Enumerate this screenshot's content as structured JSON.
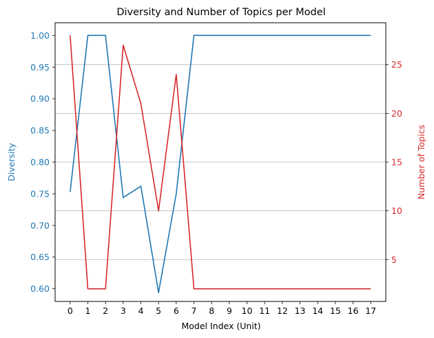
{
  "chart_data": {
    "type": "line",
    "title": "Diversity and Number of Topics per Model",
    "xlabel": "Model Index (Unit)",
    "ylabel_left": "Diversity",
    "ylabel_right": "Number of Topics",
    "x": [
      0,
      1,
      2,
      3,
      4,
      5,
      6,
      7,
      8,
      9,
      10,
      11,
      12,
      13,
      14,
      15,
      16,
      17
    ],
    "x_ticks": [
      "0",
      "1",
      "2",
      "3",
      "4",
      "5",
      "6",
      "7",
      "8",
      "9",
      "10",
      "11",
      "12",
      "13",
      "14",
      "15",
      "16",
      "17"
    ],
    "xlim": [
      -0.85,
      17.85
    ],
    "left_axis": {
      "ylim": [
        0.58,
        1.02
      ],
      "ticks": [
        0.6,
        0.65,
        0.7,
        0.75,
        0.8,
        0.85,
        0.9,
        0.95,
        1.0
      ],
      "tick_labels": [
        "0.60",
        "0.65",
        "0.70",
        "0.75",
        "0.80",
        "0.85",
        "0.90",
        "0.95",
        "1.00"
      ],
      "color": "#1f77b4"
    },
    "right_axis": {
      "ylim": [
        0.7,
        29.3
      ],
      "ticks": [
        5,
        10,
        15,
        20,
        25
      ],
      "tick_labels": [
        "5",
        "10",
        "15",
        "20",
        "25"
      ],
      "color": "#d62728",
      "grid": true
    },
    "series": [
      {
        "axis": "left",
        "color": "#1f77b4",
        "values": [
          0.753,
          1.0,
          1.0,
          0.744,
          0.762,
          0.594,
          0.75,
          1.0,
          1.0,
          1.0,
          1.0,
          1.0,
          1.0,
          1.0,
          1.0,
          1.0,
          1.0,
          1.0
        ]
      },
      {
        "axis": "right",
        "color": "#d62728",
        "values": [
          28,
          2,
          2,
          27,
          21,
          10,
          24,
          2,
          2,
          2,
          2,
          2,
          2,
          2,
          2,
          2,
          2,
          2
        ]
      }
    ]
  }
}
